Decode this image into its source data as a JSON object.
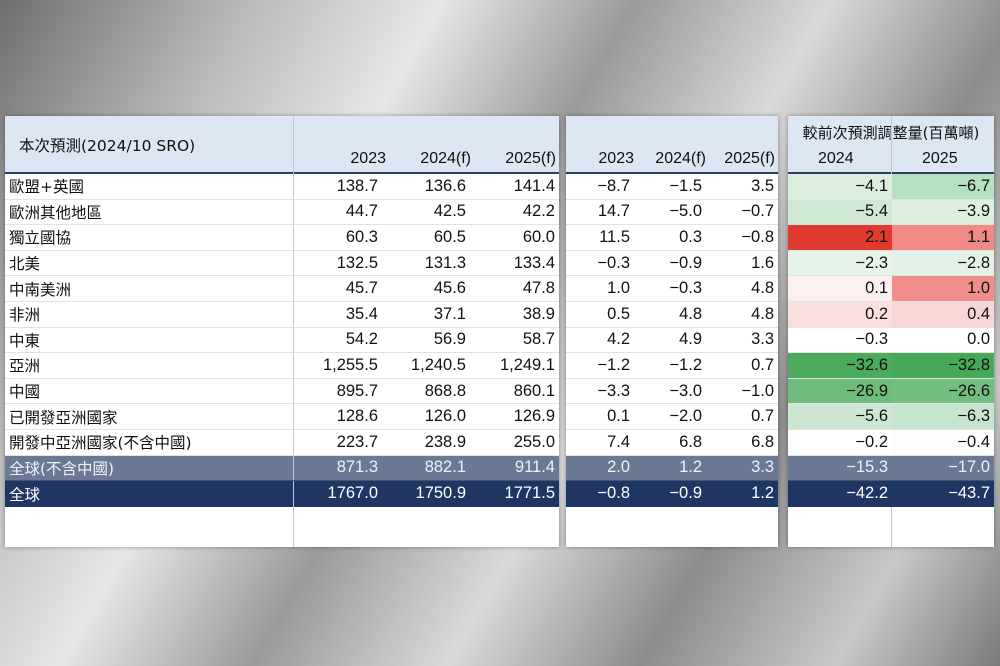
{
  "table_title": "本次預測(2024/10 SRO)",
  "adjust_title": "較前次預測調整量(百萬噸)",
  "headers_main": [
    "2023",
    "2024(f)",
    "2025(f)"
  ],
  "headers_growth": [
    "2023",
    "2024(f)",
    "2025(f)"
  ],
  "headers_adjust": [
    "2024",
    "2025"
  ],
  "rows": [
    {
      "region": "歐盟+英國",
      "v2023": "138.7",
      "v2024": "136.6",
      "v2025": "141.4",
      "g2023": "−8.7",
      "g2024": "−1.5",
      "g2025": "3.5",
      "a2024": "−4.1",
      "a2025": "−6.7",
      "c2024": "#dcefdf",
      "c2025": "#b7e0bf"
    },
    {
      "region": "歐洲其他地區",
      "v2023": "44.7",
      "v2024": "42.5",
      "v2025": "42.2",
      "g2023": "14.7",
      "g2024": "−5.0",
      "g2025": "−0.7",
      "a2024": "−5.4",
      "a2025": "−3.9",
      "c2024": "#cfe9d4",
      "c2025": "#ddf0e0"
    },
    {
      "region": "獨立國協",
      "v2023": "60.3",
      "v2024": "60.5",
      "v2025": "60.0",
      "g2023": "11.5",
      "g2024": "0.3",
      "g2025": "−0.8",
      "a2024": "2.1",
      "a2025": "1.1",
      "c2024": "#e03a2f",
      "c2025": "#ef8a86"
    },
    {
      "region": "北美",
      "v2023": "132.5",
      "v2024": "131.3",
      "v2025": "133.4",
      "g2023": "−0.3",
      "g2024": "−0.9",
      "g2025": "1.6",
      "a2024": "−2.3",
      "a2025": "−2.8",
      "c2024": "#e7f4e9",
      "c2025": "#e3f2e6"
    },
    {
      "region": "中南美洲",
      "v2023": "45.7",
      "v2024": "45.6",
      "v2025": "47.8",
      "g2023": "1.0",
      "g2024": "−0.3",
      "g2025": "4.8",
      "a2024": "0.1",
      "a2025": "1.0",
      "c2024": "#fdf0f0",
      "c2025": "#ef8e8b"
    },
    {
      "region": "非洲",
      "v2023": "35.4",
      "v2024": "37.1",
      "v2025": "38.9",
      "g2023": "0.5",
      "g2024": "4.8",
      "g2025": "4.8",
      "a2024": "0.2",
      "a2025": "0.4",
      "c2024": "#fbdede",
      "c2025": "#f9d6d6"
    },
    {
      "region": "中東",
      "v2023": "54.2",
      "v2024": "56.9",
      "v2025": "58.7",
      "g2023": "4.2",
      "g2024": "4.9",
      "g2025": "3.3",
      "a2024": "−0.3",
      "a2025": "0.0",
      "c2024": "#ffffff",
      "c2025": "#ffffff"
    },
    {
      "region": "亞洲",
      "v2023": "1,255.5",
      "v2024": "1,240.5",
      "v2025": "1,249.1",
      "g2023": "−1.2",
      "g2024": "−1.2",
      "g2025": "0.7",
      "a2024": "−32.6",
      "a2025": "−32.8",
      "c2024": "#4caa5c",
      "c2025": "#47a858"
    },
    {
      "region": "中國",
      "v2023": "895.7",
      "v2024": "868.8",
      "v2025": "860.1",
      "g2023": "−3.3",
      "g2024": "−3.0",
      "g2025": "−1.0",
      "a2024": "−26.9",
      "a2025": "−26.6",
      "c2024": "#6fbb7c",
      "c2025": "#72bd7f"
    },
    {
      "region": "已開發亞洲國家",
      "v2023": "128.6",
      "v2024": "126.0",
      "v2025": "126.9",
      "g2023": "0.1",
      "g2024": "−2.0",
      "g2025": "0.7",
      "a2024": "−5.6",
      "a2025": "−6.3",
      "c2024": "#cde8d2",
      "c2025": "#c6e5cc"
    },
    {
      "region": "開發中亞洲國家(不含中國)",
      "v2023": "223.7",
      "v2024": "238.9",
      "v2025": "255.0",
      "g2023": "7.4",
      "g2024": "6.8",
      "g2025": "6.8",
      "a2024": "−0.2",
      "a2025": "−0.4",
      "c2024": "#ffffff",
      "c2025": "#fcfefc"
    }
  ],
  "subtotal": {
    "region": "全球(不含中國)",
    "v2023": "871.3",
    "v2024": "882.1",
    "v2025": "911.4",
    "g2023": "2.0",
    "g2024": "1.2",
    "g2025": "3.3",
    "a2024": "−15.3",
    "a2025": "−17.0"
  },
  "total": {
    "region": "全球",
    "v2023": "1767.0",
    "v2024": "1750.9",
    "v2025": "1771.5",
    "g2023": "−0.8",
    "g2024": "−0.9",
    "g2025": "1.2",
    "a2024": "−42.2",
    "a2025": "−43.7"
  }
}
